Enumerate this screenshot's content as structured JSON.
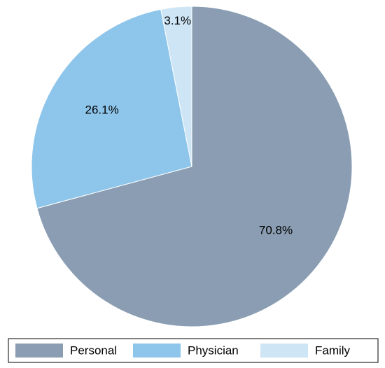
{
  "chart_data": {
    "type": "pie",
    "categories": [
      "Personal",
      "Physician",
      "Family"
    ],
    "values": [
      70.8,
      26.1,
      3.1
    ],
    "value_labels": [
      "70.8%",
      "26.1%",
      "3.1%"
    ],
    "colors": [
      "#8a9db2",
      "#8ec5ea",
      "#cde5f5"
    ],
    "legend": "bottom"
  }
}
